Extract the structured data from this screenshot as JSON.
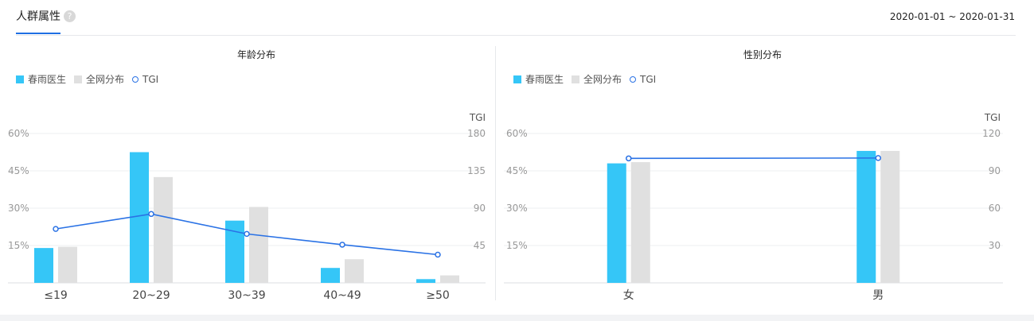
{
  "header": {
    "tab_label": "人群属性",
    "help_icon": "?",
    "date_range": "2020-01-01 ~ 2020-01-31"
  },
  "colors": {
    "brand": "#35c6f7",
    "overall": "#e0e0e0",
    "tgi": "#2a72e5",
    "tab_underline": "#1f6fe3"
  },
  "legend": {
    "brand_label": "春雨医生",
    "overall_label": "全网分布",
    "tgi_label": "TGI"
  },
  "chart_data": [
    {
      "type": "bar",
      "title": "年龄分布",
      "categories": [
        "≤19",
        "20~29",
        "30~39",
        "40~49",
        "≥50"
      ],
      "series": [
        {
          "name": "春雨医生",
          "values": [
            14,
            52.5,
            25,
            6,
            1.5
          ]
        },
        {
          "name": "全网分布",
          "values": [
            14.5,
            42.5,
            30.5,
            9.5,
            3
          ]
        }
      ],
      "line_series": {
        "name": "TGI",
        "values": [
          65,
          83,
          59,
          46,
          34
        ]
      },
      "y_left": {
        "ylim": [
          0,
          60
        ],
        "ticks": [
          15,
          30,
          45,
          60
        ],
        "tick_labels": [
          "15%",
          "30%",
          "45%",
          "60%"
        ]
      },
      "y_right": {
        "label": "TGI",
        "ylim": [
          0,
          180
        ],
        "ticks": [
          45,
          90,
          135,
          180
        ],
        "tick_labels": [
          "45",
          "90",
          "135",
          "180"
        ]
      },
      "grid": true,
      "legend_position": "top-left"
    },
    {
      "type": "bar",
      "title": "性别分布",
      "categories": [
        "女",
        "男"
      ],
      "series": [
        {
          "name": "春雨医生",
          "values": [
            48,
            53
          ]
        },
        {
          "name": "全网分布",
          "values": [
            48.5,
            53
          ]
        }
      ],
      "line_series": {
        "name": "TGI",
        "values": [
          100,
          100.3
        ]
      },
      "y_left": {
        "ylim": [
          0,
          60
        ],
        "ticks": [
          15,
          30,
          45,
          60
        ],
        "tick_labels": [
          "15%",
          "30%",
          "45%",
          "60%"
        ]
      },
      "y_right": {
        "label": "TGI",
        "ylim": [
          0,
          120
        ],
        "ticks": [
          30,
          60,
          90,
          120
        ],
        "tick_labels": [
          "30",
          "60",
          "90",
          "120"
        ]
      },
      "grid": true,
      "legend_position": "top-left"
    }
  ]
}
